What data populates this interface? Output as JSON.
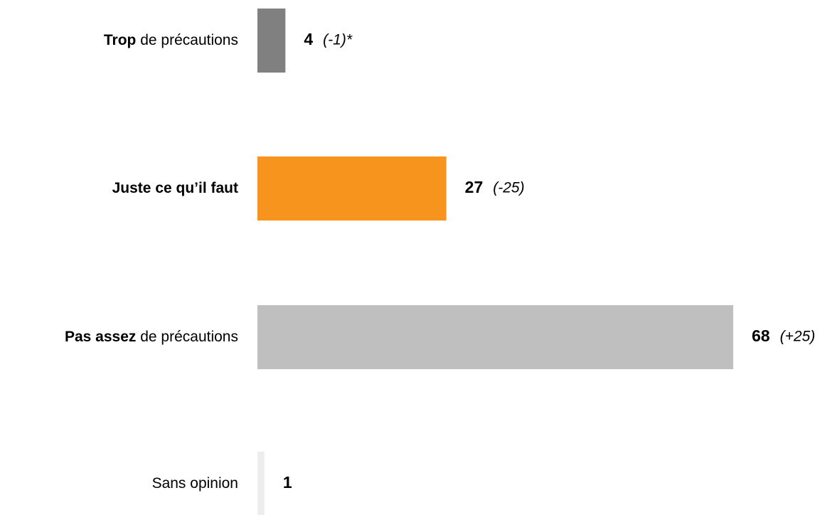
{
  "chart_data": {
    "type": "bar",
    "categories": [
      [
        {
          "text": "Trop",
          "bold": true
        },
        {
          "text": " de précautions"
        }
      ],
      [
        {
          "text": "Juste ce qu’il faut",
          "bold": true
        }
      ],
      [
        {
          "text": "Pas assez",
          "bold": true
        },
        {
          "text": " de précautions"
        }
      ],
      [
        {
          "text": "Sans opinion"
        }
      ]
    ],
    "values": [
      4,
      27,
      68,
      1
    ],
    "changes": [
      "(-1)*",
      "(-25)",
      "(+25)",
      null
    ],
    "colors": [
      "#808080",
      "#f7941d",
      "#bfbfbf",
      "#ededed"
    ]
  }
}
